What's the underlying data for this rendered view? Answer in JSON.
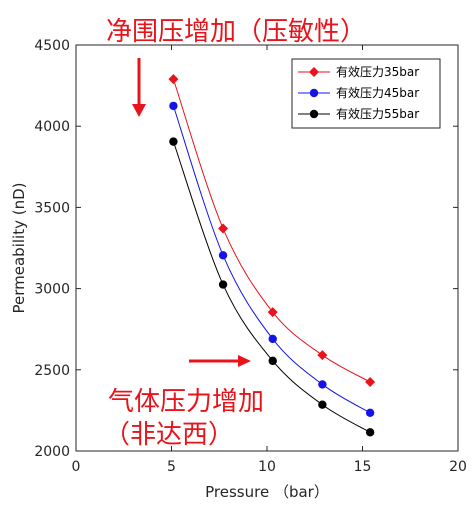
{
  "chart_data": {
    "type": "line",
    "xlabel": "Pressure （bar）",
    "ylabel": "Permeability (nD)",
    "xlim": [
      0,
      20
    ],
    "ylim": [
      2000,
      4500
    ],
    "xticks": [
      0,
      5,
      10,
      15,
      20
    ],
    "yticks": [
      2000,
      2500,
      3000,
      3500,
      4000,
      4500
    ],
    "grid": false,
    "legend_position": "top-right",
    "series": [
      {
        "name": "有效压力35bar",
        "color": "#e8141c",
        "marker": "diamond",
        "x": [
          5.1,
          7.7,
          10.3,
          12.9,
          15.4
        ],
        "y": [
          4290,
          3370,
          2855,
          2590,
          2425
        ]
      },
      {
        "name": "有效压力45bar",
        "color": "#1414e8",
        "marker": "circle",
        "x": [
          5.1,
          7.7,
          10.3,
          12.9,
          15.4
        ],
        "y": [
          4125,
          3205,
          2690,
          2410,
          2235
        ]
      },
      {
        "name": "有效压力55bar",
        "color": "#000000",
        "marker": "circle",
        "x": [
          5.1,
          7.7,
          10.3,
          12.9,
          15.4
        ],
        "y": [
          3905,
          3025,
          2555,
          2285,
          2115
        ]
      }
    ],
    "annotations": [
      {
        "text": "净围压增加（压敏性）",
        "color": "#e8141c"
      },
      {
        "text": "气体压力增加",
        "color": "#e8141c"
      },
      {
        "text": "（非达西）",
        "color": "#e8141c"
      }
    ]
  }
}
